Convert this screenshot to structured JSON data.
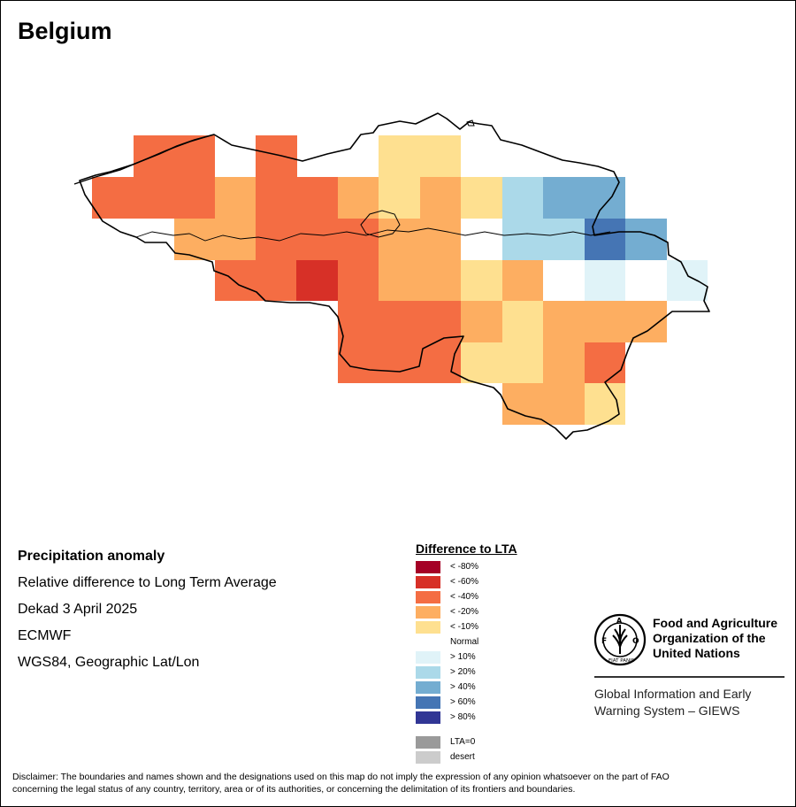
{
  "map": {
    "title": "Belgium"
  },
  "info": {
    "line1": "Precipitation anomaly",
    "line2": "Relative difference to Long Term Average",
    "line3": "Dekad 3 April 2025",
    "line4": "ECMWF",
    "line5": "WGS84, Geographic Lat/Lon"
  },
  "legend": {
    "title": "Difference to LTA",
    "items": [
      {
        "label": "< -80%",
        "color": "#a50026"
      },
      {
        "label": "< -60%",
        "color": "#d73027"
      },
      {
        "label": "< -40%",
        "color": "#f46d43"
      },
      {
        "label": "< -20%",
        "color": "#fdae61"
      },
      {
        "label": "< -10%",
        "color": "#fee090"
      },
      {
        "label": "Normal",
        "color": "#ffffff"
      },
      {
        "label": "> 10%",
        "color": "#e0f3f8"
      },
      {
        "label": "> 20%",
        "color": "#abd9e9"
      },
      {
        "label": "> 40%",
        "color": "#74add1"
      },
      {
        "label": "> 60%",
        "color": "#4575b4"
      },
      {
        "label": "> 80%",
        "color": "#313695"
      }
    ],
    "extra": [
      {
        "label": "LTA=0",
        "color": "#9a9a9a"
      },
      {
        "label": "desert",
        "color": "#cccccc"
      }
    ]
  },
  "fao": {
    "name_line1": "Food and Agriculture",
    "name_line2": "Organization of the",
    "name_line3": "United Nations",
    "logo_text": "FAO",
    "motto": "FIAT PANIS",
    "giews_line1": "Global Information and Early",
    "giews_line2": "Warning System – GIEWS"
  },
  "disclaimer": {
    "line1": "Disclaimer: The boundaries and names shown and the designations used on this map do not imply the expression of any opinion whatsoever on the part of FAO",
    "line2": "concerning the legal status of any country, territory, area or of its authorities, or concerning the delimitation of its frontiers and boundaries."
  }
}
